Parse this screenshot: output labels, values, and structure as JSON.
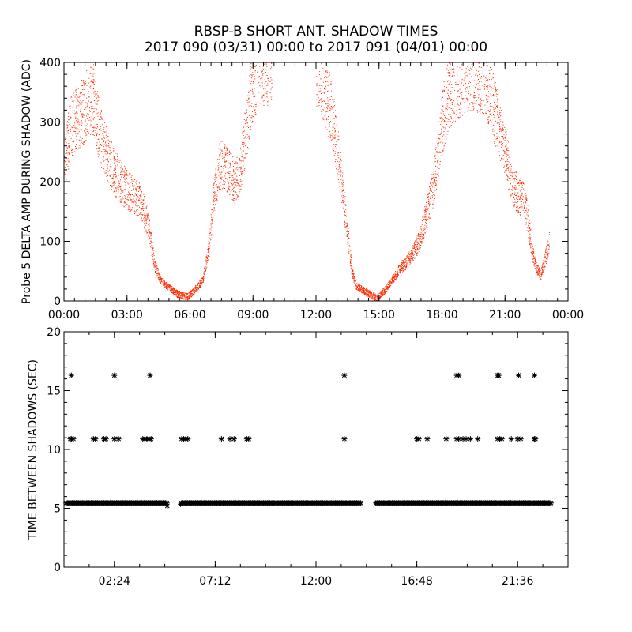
{
  "title_line1": "RBSP-B SHORT ANT. SHADOW TIMES",
  "title_line2": "2017 090 (03/31) 00:00 to 2017 091 (04/01) 00:00",
  "colors": {
    "top_series": "#ff2a00",
    "bottom_series": "#000000",
    "axes": "#000000",
    "background": "#ffffff"
  },
  "chart_data": [
    {
      "type": "scatter",
      "ylabel": "Probe 5 DELTA AMP DURING SHADOW (ADC)",
      "xlabel": "",
      "xlim": [
        0,
        24
      ],
      "ylim": [
        0,
        400
      ],
      "x_ticks": [
        "00:00",
        "03:00",
        "06:00",
        "09:00",
        "12:00",
        "15:00",
        "18:00",
        "21:00",
        "00:00"
      ],
      "y_ticks": [
        "0",
        "100",
        "200",
        "300",
        "400"
      ],
      "x_unit": "hours",
      "series": [
        {
          "color": "#ff2a00",
          "trend": [
            [
              0.0,
              230
            ],
            [
              0.3,
              290
            ],
            [
              0.7,
              310
            ],
            [
              1.1,
              330
            ],
            [
              1.4,
              340
            ],
            [
              1.7,
              280
            ],
            [
              2.0,
              250
            ],
            [
              2.4,
              215
            ],
            [
              2.8,
              195
            ],
            [
              3.2,
              180
            ],
            [
              3.6,
              170
            ],
            [
              4.0,
              130
            ],
            [
              4.3,
              60
            ],
            [
              4.6,
              35
            ],
            [
              4.9,
              25
            ],
            [
              5.4,
              12
            ],
            [
              5.9,
              8
            ],
            [
              6.3,
              22
            ],
            [
              6.6,
              35
            ],
            [
              6.9,
              90
            ],
            [
              7.1,
              170
            ],
            [
              7.4,
              230
            ],
            [
              7.8,
              220
            ],
            [
              8.1,
              200
            ],
            [
              8.4,
              220
            ],
            [
              8.7,
              300
            ],
            [
              9.0,
              370
            ],
            [
              9.3,
              400
            ],
            [
              9.6,
              400
            ],
            [
              9.9,
              400
            ],
            [
              12.0,
              400
            ],
            [
              12.4,
              360
            ],
            [
              12.8,
              300
            ],
            [
              13.1,
              230
            ],
            [
              13.3,
              170
            ],
            [
              13.5,
              110
            ],
            [
              13.7,
              50
            ],
            [
              13.9,
              25
            ],
            [
              14.9,
              5
            ],
            [
              15.3,
              20
            ],
            [
              15.7,
              40
            ],
            [
              16.0,
              55
            ],
            [
              16.3,
              65
            ],
            [
              16.6,
              80
            ],
            [
              16.9,
              100
            ],
            [
              17.2,
              140
            ],
            [
              17.5,
              180
            ],
            [
              17.8,
              240
            ],
            [
              18.0,
              300
            ],
            [
              18.3,
              350
            ],
            [
              18.7,
              370
            ],
            [
              19.1,
              380
            ],
            [
              19.5,
              390
            ],
            [
              20.0,
              380
            ],
            [
              20.5,
              320
            ],
            [
              21.0,
              250
            ],
            [
              21.3,
              200
            ],
            [
              21.6,
              180
            ],
            [
              21.9,
              170
            ],
            [
              22.1,
              130
            ],
            [
              22.3,
              80
            ],
            [
              22.5,
              55
            ],
            [
              22.7,
              45
            ],
            [
              22.9,
              70
            ],
            [
              23.1,
              100
            ]
          ]
        }
      ]
    },
    {
      "type": "scatter",
      "ylabel": "TIME BETWEEN SHADOWS (SEC)",
      "xlabel": "",
      "xlim": [
        0,
        24
      ],
      "ylim": [
        0,
        20
      ],
      "x_ticks": [
        "02:24",
        "07:12",
        "12:00",
        "16:48",
        "21:36"
      ],
      "y_ticks": [
        "0",
        "5",
        "10",
        "15",
        "20"
      ],
      "x_unit": "hours",
      "series": [
        {
          "color": "#000000",
          "baseline": {
            "y": 5.45,
            "ranges": [
              [
                0.1,
                4.9
              ],
              [
                5.6,
                14.15
              ],
              [
                14.85,
                23.2
              ]
            ],
            "extra_points": [
              [
                4.92,
                5.2
              ],
              [
                5.55,
                5.35
              ]
            ]
          },
          "points_10_9": [
            0.3,
            0.35,
            0.45,
            1.4,
            1.5,
            1.9,
            2.0,
            2.4,
            2.6,
            3.75,
            3.85,
            3.95,
            4.05,
            4.15,
            5.6,
            5.7,
            5.8,
            5.9,
            7.5,
            7.9,
            8.1,
            8.7,
            8.8,
            13.35,
            16.8,
            16.9,
            17.3,
            18.2,
            18.7,
            18.8,
            19.0,
            19.15,
            19.35,
            19.7,
            20.65,
            20.75,
            20.85,
            21.3,
            21.6,
            21.75,
            22.4,
            22.45
          ],
          "points_16_3": [
            0.35,
            2.4,
            4.1,
            13.35,
            18.7,
            18.8,
            20.65,
            20.7,
            21.65,
            22.4
          ]
        }
      ]
    }
  ]
}
